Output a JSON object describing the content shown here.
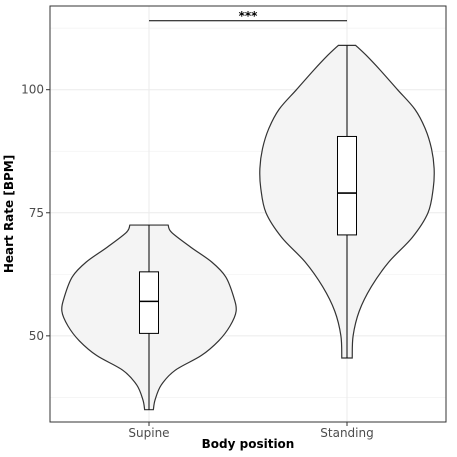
{
  "chart_data": {
    "type": "violin",
    "title": "",
    "xlabel": "Body position",
    "ylabel": "Heart Rate [BPM]",
    "categories": [
      "Supine",
      "Standing"
    ],
    "ylim": [
      32.5,
      117
    ],
    "yticks": [
      50,
      75,
      100
    ],
    "ytick_labels": [
      "50",
      "75",
      "100"
    ],
    "grid": true,
    "groups": [
      {
        "name": "Supine",
        "min": 35,
        "q1": 50.5,
        "median": 57,
        "q3": 63,
        "max": 72.5,
        "density": [
          [
            35,
            0.05
          ],
          [
            37,
            0.07
          ],
          [
            40,
            0.14
          ],
          [
            43,
            0.3
          ],
          [
            46,
            0.6
          ],
          [
            49,
            0.8
          ],
          [
            52,
            0.93
          ],
          [
            55,
            1.0
          ],
          [
            58,
            0.97
          ],
          [
            62,
            0.88
          ],
          [
            65,
            0.72
          ],
          [
            68,
            0.48
          ],
          [
            71,
            0.26
          ],
          [
            72.5,
            0.22
          ]
        ]
      },
      {
        "name": "Standing",
        "min": 45.5,
        "q1": 70.5,
        "median": 79,
        "q3": 90.5,
        "max": 109,
        "density": [
          [
            45.5,
            0.06
          ],
          [
            50,
            0.07
          ],
          [
            55,
            0.14
          ],
          [
            60,
            0.28
          ],
          [
            65,
            0.48
          ],
          [
            70,
            0.75
          ],
          [
            75,
            0.93
          ],
          [
            80,
            0.99
          ],
          [
            84,
            1.0
          ],
          [
            88,
            0.97
          ],
          [
            92,
            0.9
          ],
          [
            96,
            0.78
          ],
          [
            100,
            0.58
          ],
          [
            104,
            0.38
          ],
          [
            107,
            0.22
          ],
          [
            109,
            0.1
          ]
        ]
      }
    ],
    "annotations": [
      {
        "text": "***",
        "from": "Supine",
        "to": "Standing",
        "y": 114
      }
    ]
  }
}
